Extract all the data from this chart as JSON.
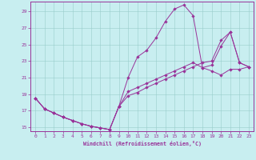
{
  "xlabel": "Windchill (Refroidissement éolien,°C)",
  "bg_color": "#c8eef0",
  "line_color": "#993399",
  "ylim": [
    14.5,
    30.2
  ],
  "xlim": [
    -0.5,
    23.5
  ],
  "yticks": [
    15,
    17,
    19,
    21,
    23,
    25,
    27,
    29
  ],
  "xticks": [
    0,
    1,
    2,
    3,
    4,
    5,
    6,
    7,
    8,
    9,
    10,
    11,
    12,
    13,
    14,
    15,
    16,
    17,
    18,
    19,
    20,
    21,
    22,
    23
  ],
  "curve1_x": [
    0,
    1,
    2,
    3,
    4,
    5,
    6,
    7,
    8,
    9,
    10,
    11,
    12,
    13,
    14,
    15,
    16,
    17,
    18,
    19,
    20,
    21,
    22,
    23
  ],
  "curve1_y": [
    18.5,
    17.2,
    16.7,
    16.2,
    15.8,
    15.4,
    15.1,
    14.9,
    14.7,
    17.5,
    21.0,
    23.5,
    24.3,
    25.8,
    27.8,
    29.3,
    29.8,
    28.5,
    22.2,
    22.5,
    24.8,
    26.5,
    22.8,
    22.3
  ],
  "curve2_x": [
    0,
    1,
    2,
    3,
    4,
    5,
    6,
    7,
    8,
    9,
    10,
    11,
    12,
    13,
    14,
    15,
    16,
    17,
    18,
    19,
    20,
    21,
    22,
    23
  ],
  "curve2_y": [
    18.5,
    17.2,
    16.7,
    16.2,
    15.8,
    15.4,
    15.1,
    14.9,
    14.7,
    17.5,
    19.3,
    19.8,
    20.3,
    20.8,
    21.3,
    21.8,
    22.3,
    22.8,
    22.2,
    21.8,
    21.3,
    22.0,
    22.0,
    22.3
  ],
  "curve3_x": [
    0,
    1,
    2,
    3,
    4,
    5,
    6,
    7,
    8,
    9,
    10,
    11,
    12,
    13,
    14,
    15,
    16,
    17,
    18,
    19,
    20,
    21,
    22,
    23
  ],
  "curve3_y": [
    18.5,
    17.2,
    16.7,
    16.2,
    15.8,
    15.4,
    15.1,
    14.9,
    14.7,
    17.5,
    18.8,
    19.2,
    19.8,
    20.3,
    20.8,
    21.3,
    21.8,
    22.3,
    22.8,
    23.0,
    25.5,
    26.5,
    22.8,
    22.3
  ]
}
